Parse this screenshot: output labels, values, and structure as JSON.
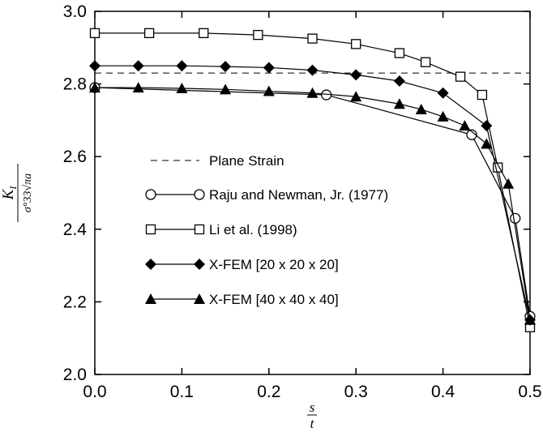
{
  "chart_data": {
    "type": "line",
    "title": "",
    "xlabel": {
      "numerator": "s",
      "denominator": "t"
    },
    "ylabel": {
      "numerator": "K",
      "numerator_sub": "I",
      "denominator": "σ°33√πa"
    },
    "xlim": [
      0,
      0.5
    ],
    "ylim": [
      2.0,
      3.0
    ],
    "x_ticks": [
      "0.0",
      "0.1",
      "0.2",
      "0.3",
      "0.4",
      "0.5"
    ],
    "y_ticks": [
      "2.0",
      "2.2",
      "2.4",
      "2.6",
      "2.8",
      "3.0"
    ],
    "grid": false,
    "legend_position": "lower-left",
    "reference_line": {
      "name": "Plane Strain",
      "y": 2.83,
      "style": "dashed"
    },
    "series": [
      {
        "name": "Raju and Newman, Jr. (1977)",
        "marker": "circle-open",
        "x": [
          0.0,
          0.266,
          0.433,
          0.483,
          0.5
        ],
        "y": [
          2.79,
          2.77,
          2.66,
          2.43,
          2.16
        ]
      },
      {
        "name": "Li et al. (1998)",
        "marker": "square-open",
        "x": [
          0.0,
          0.0625,
          0.125,
          0.1875,
          0.25,
          0.3,
          0.35,
          0.38,
          0.42,
          0.445,
          0.463,
          0.5
        ],
        "y": [
          2.94,
          2.94,
          2.94,
          2.935,
          2.925,
          2.91,
          2.885,
          2.86,
          2.82,
          2.77,
          2.57,
          2.13
        ]
      },
      {
        "name": "X-FEM [20 x 20 x 20]",
        "marker": "diamond-filled",
        "x": [
          0.0,
          0.05,
          0.1,
          0.15,
          0.2,
          0.25,
          0.3,
          0.35,
          0.4,
          0.45,
          0.5
        ],
        "y": [
          2.85,
          2.85,
          2.85,
          2.848,
          2.845,
          2.838,
          2.825,
          2.808,
          2.775,
          2.685,
          2.15
        ]
      },
      {
        "name": "X-FEM [40 x 40 x 40]",
        "marker": "triangle-filled",
        "x": [
          0.0,
          0.05,
          0.1,
          0.15,
          0.2,
          0.25,
          0.3,
          0.35,
          0.375,
          0.4,
          0.425,
          0.45,
          0.475,
          0.5
        ],
        "y": [
          2.79,
          2.79,
          2.788,
          2.785,
          2.78,
          2.775,
          2.765,
          2.745,
          2.73,
          2.71,
          2.685,
          2.635,
          2.525,
          2.15
        ]
      }
    ]
  }
}
